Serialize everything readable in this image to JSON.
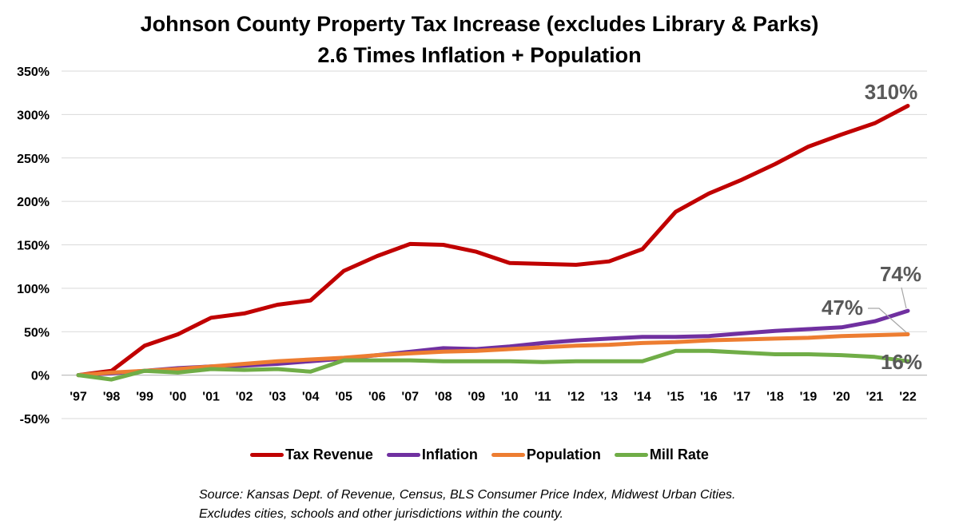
{
  "chart_data": {
    "type": "line",
    "title": "Johnson County Property Tax Increase (excludes Library & Parks)",
    "subtitle": "2.6 Times Inflation + Population",
    "categories": [
      "'97",
      "'98",
      "'99",
      "'00",
      "'01",
      "'02",
      "'03",
      "'04",
      "'05",
      "'06",
      "'07",
      "'08",
      "'09",
      "'10",
      "'11",
      "'12",
      "'13",
      "'14",
      "'15",
      "'16",
      "'17",
      "'18",
      "'19",
      "'20",
      "'21",
      "'22"
    ],
    "y_ticks": [
      "350%",
      "300%",
      "250%",
      "200%",
      "150%",
      "100%",
      "50%",
      "0%",
      "-50%"
    ],
    "ylim": [
      -50,
      350
    ],
    "grid": true,
    "legend_position": "bottom",
    "series": [
      {
        "name": "Tax Revenue",
        "color": "#C00000",
        "values": [
          0,
          5,
          34,
          47,
          66,
          71,
          81,
          86,
          120,
          137,
          151,
          150,
          142,
          129,
          128,
          127,
          131,
          145,
          188,
          209,
          225,
          243,
          263,
          277,
          290,
          310
        ]
      },
      {
        "name": "Inflation",
        "color": "#7030A0",
        "values": [
          0,
          2,
          5,
          8,
          10,
          11,
          13,
          16,
          19,
          23,
          27,
          31,
          30,
          33,
          37,
          40,
          42,
          44,
          44,
          45,
          48,
          51,
          53,
          55,
          62,
          74
        ]
      },
      {
        "name": "Population",
        "color": "#ED7D31",
        "values": [
          0,
          3,
          5,
          7,
          10,
          13,
          16,
          18,
          20,
          23,
          25,
          27,
          28,
          30,
          32,
          34,
          35,
          37,
          38,
          40,
          41,
          42,
          43,
          45,
          46,
          47
        ]
      },
      {
        "name": "Mill Rate",
        "color": "#70AD47",
        "values": [
          0,
          -5,
          5,
          3,
          7,
          6,
          7,
          4,
          17,
          17,
          17,
          16,
          16,
          16,
          15,
          16,
          16,
          16,
          28,
          28,
          26,
          24,
          24,
          23,
          21,
          16
        ]
      }
    ],
    "annotations": [
      "310%",
      "74%",
      "47%",
      "16%"
    ]
  },
  "source": {
    "line1": "Source: Kansas Dept. of Revenue, Census, BLS Consumer Price Index, Midwest Urban Cities.",
    "line2": "Excludes cities, schools and other jurisdictions within the county."
  }
}
